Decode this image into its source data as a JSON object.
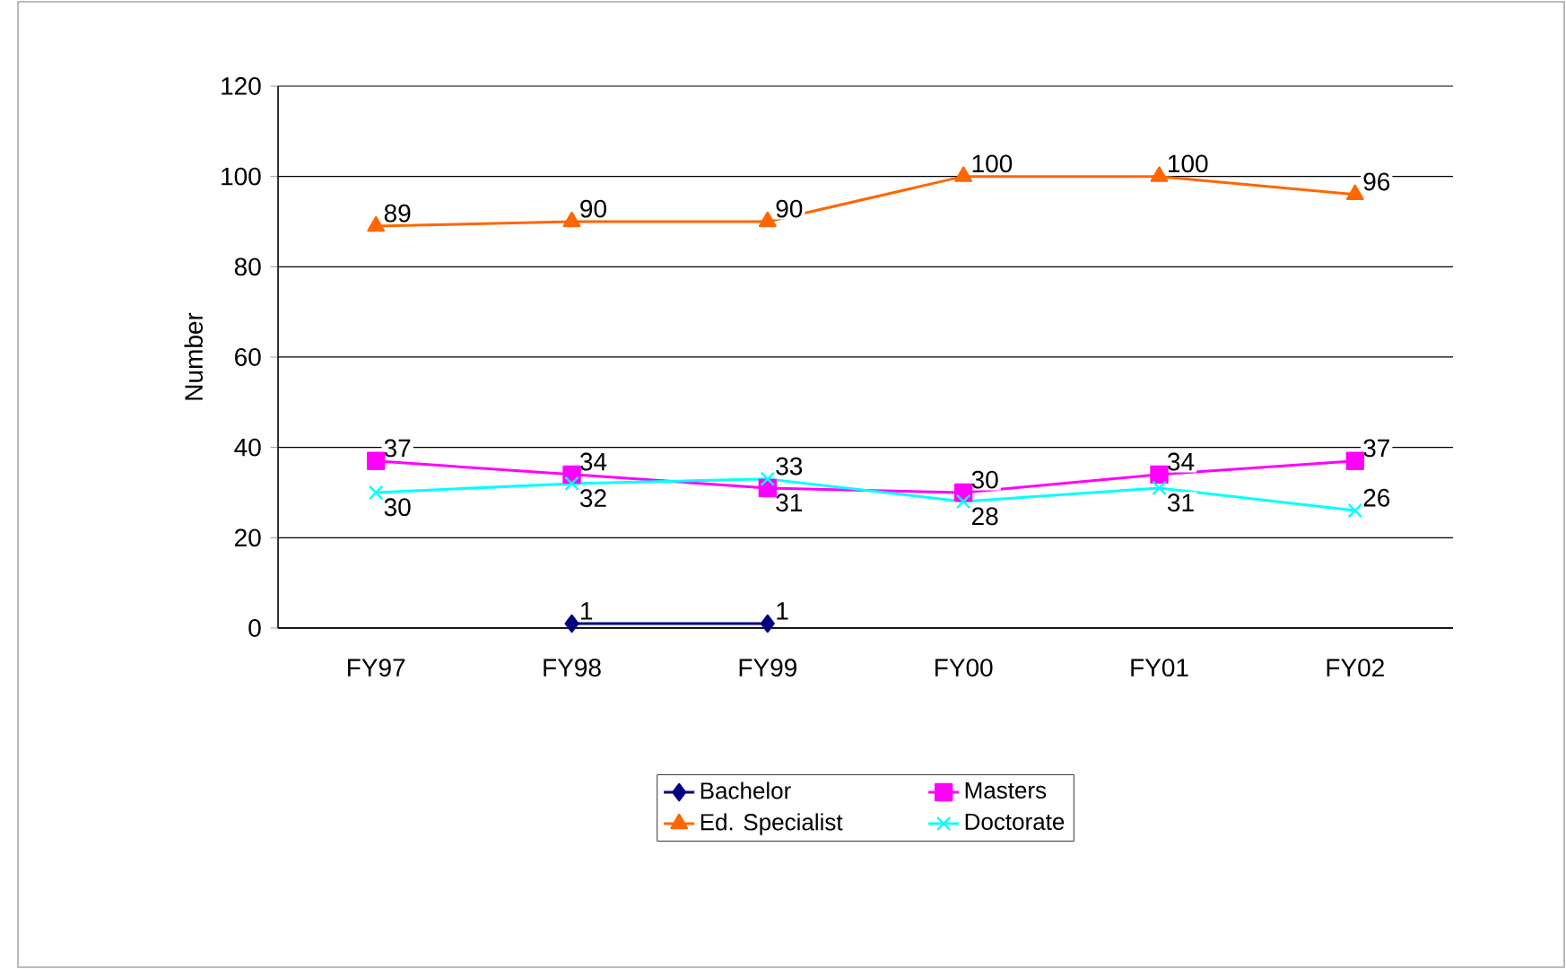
{
  "chart_data": {
    "type": "line",
    "ylabel": "Number",
    "categories": [
      "FY97",
      "FY98",
      "FY99",
      "FY00",
      "FY01",
      "FY02"
    ],
    "series": [
      {
        "name": "Bachelor",
        "color": "#000080",
        "marker": "diamond",
        "values": [
          null,
          1,
          1,
          null,
          null,
          null
        ]
      },
      {
        "name": "Masters",
        "color": "#ff00ff",
        "marker": "square",
        "values": [
          37,
          34,
          31,
          30,
          34,
          37
        ]
      },
      {
        "name": "Ed. Specialist",
        "color": "#ff6600",
        "marker": "triangle",
        "values": [
          89,
          90,
          90,
          100,
          100,
          96
        ]
      },
      {
        "name": "Doctorate",
        "color": "#00ffff",
        "marker": "cross",
        "values": [
          30,
          32,
          33,
          28,
          31,
          26
        ]
      }
    ],
    "ylim": [
      0,
      120
    ],
    "yticks": [
      0,
      20,
      40,
      60,
      80,
      100,
      120
    ],
    "grid": "y",
    "legend": "bottom",
    "data_labels": true
  }
}
